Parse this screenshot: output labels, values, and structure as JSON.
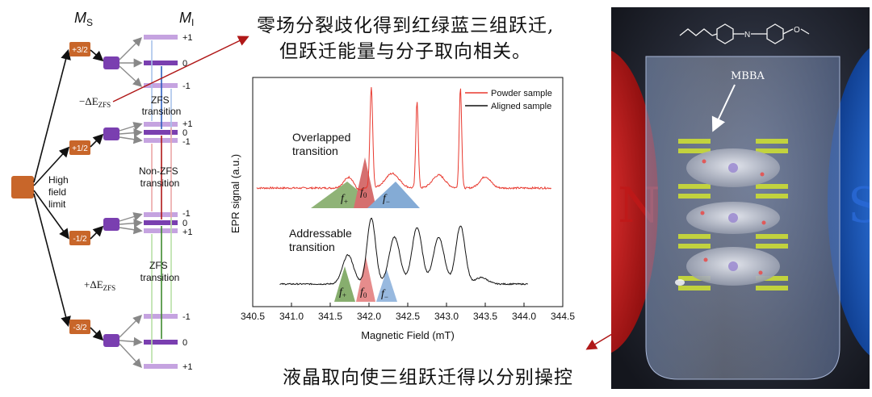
{
  "energy_diagram": {
    "ms_label": "M",
    "ms_sub": "S",
    "mi_label": "M",
    "mi_sub": "I",
    "high_field_limit": [
      "High",
      "field",
      "limit"
    ],
    "ms_levels": [
      "+3/2",
      "+1/2",
      "-1/2",
      "-3/2"
    ],
    "mi_levels_top": [
      "+1",
      "0",
      "-1"
    ],
    "mi_levels_second": [
      "+1",
      "0",
      "-1"
    ],
    "mi_levels_third": [
      "-1",
      "0",
      "+1"
    ],
    "mi_levels_bottom": [
      "-1",
      "0",
      "+1"
    ],
    "zfs_minus": "−ΔE",
    "zfs_plus": "+ΔE",
    "zfs_sub": "ZFS",
    "zfs_transition_top": [
      "ZFS",
      "transition"
    ],
    "non_zfs_transition": [
      "Non-ZFS",
      "transition"
    ],
    "zfs_transition_bottom": [
      "ZFS",
      "transition"
    ]
  },
  "captions": {
    "top_line1": "零场分裂歧化得到红绿蓝三组跃迁,",
    "top_line2": "但跃迁能量与分子取向相关。",
    "bottom": "液晶取向使三组跃迁得以分别操控"
  },
  "chart_data": {
    "type": "line",
    "xlabel": "Magnetic Field (mT)",
    "ylabel": "EPR signal (a.u.)",
    "xlim": [
      340.5,
      344.5
    ],
    "xticks": [
      "340.5",
      "341.0",
      "341.5",
      "342.0",
      "342.5",
      "343.0",
      "343.5",
      "344.0",
      "344.5"
    ],
    "legend": [
      "Powder sample",
      "Aligned sample"
    ],
    "legend_position": "top-right",
    "series": [
      {
        "name": "Powder sample",
        "color": "#e8392f",
        "peaks": [
          341.75,
          342.03,
          342.62,
          343.18,
          343.5
        ]
      },
      {
        "name": "Aligned sample",
        "color": "#111111",
        "peaks": [
          341.73,
          342.03,
          342.33,
          342.62,
          342.9,
          343.18
        ]
      }
    ],
    "annotations": {
      "overlapped": [
        "Overlapped",
        "transition"
      ],
      "addressable": [
        "Addressable",
        "transition"
      ],
      "f_plus": "f",
      "f_plus_sub": "+",
      "f_zero": "f",
      "f_zero_sub": "0",
      "f_minus": "f",
      "f_minus_sub": "−"
    },
    "grid": false
  },
  "right_panel": {
    "molecule_label": "MBBA",
    "left_pole": "N",
    "right_pole": "S"
  }
}
